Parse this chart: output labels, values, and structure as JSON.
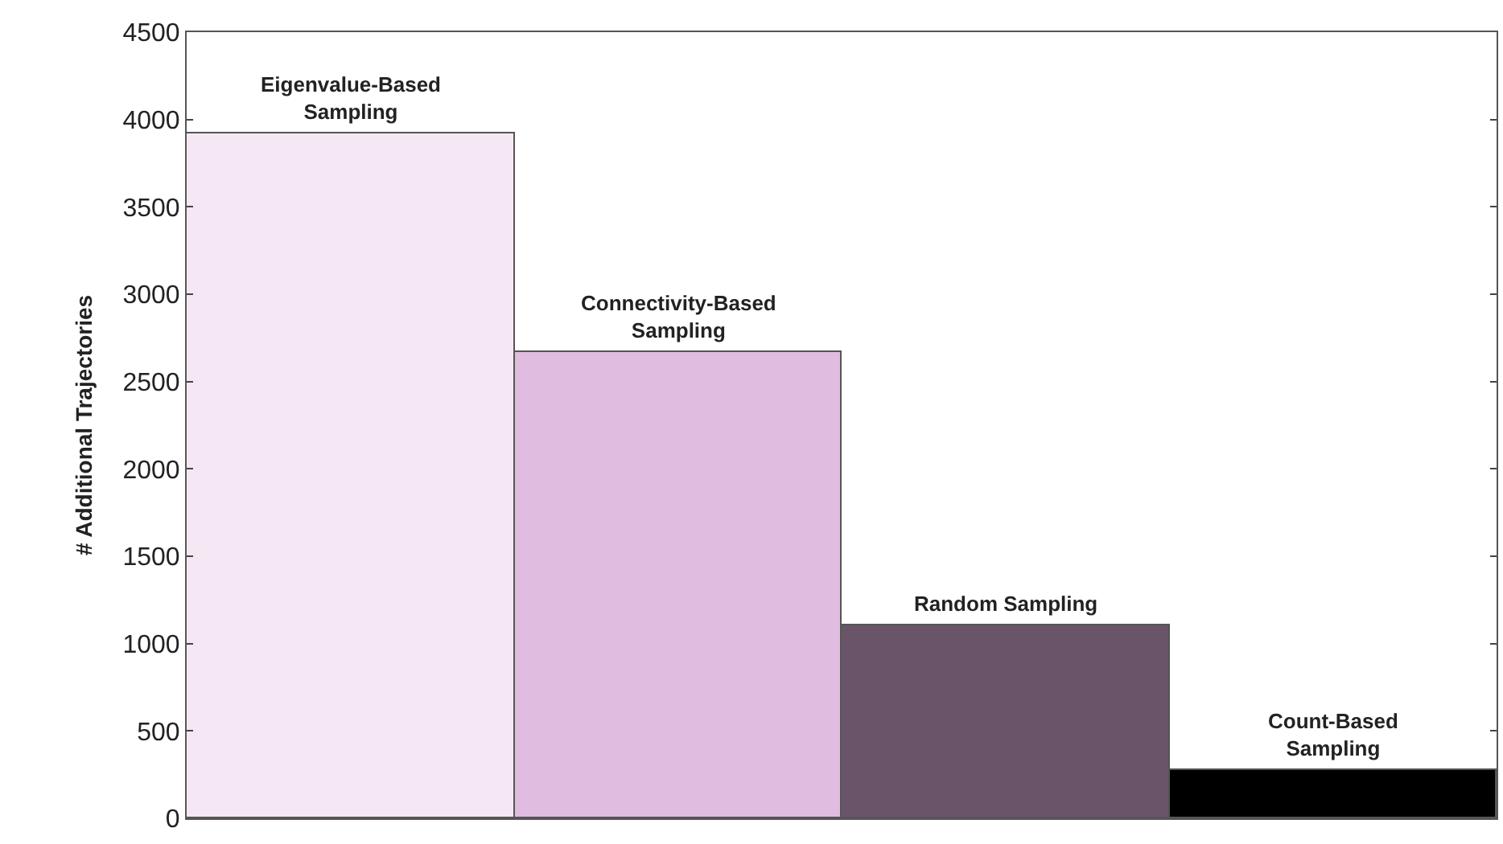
{
  "chart_data": {
    "type": "bar",
    "ylabel": "# Additional Trajectories",
    "categories": [
      "Eigenvalue-Based Sampling",
      "Connectivity-Based Sampling",
      "Random Sampling",
      "Count-Based Sampling"
    ],
    "values": [
      3920,
      2670,
      1100,
      280
    ],
    "colors": [
      "#f5e8f4",
      "#e0bde0",
      "#6a5469",
      "#000000"
    ],
    "ylim": [
      0,
      4500
    ],
    "yticks": [
      0,
      500,
      1000,
      1500,
      2000,
      2500,
      3000,
      3500,
      4000,
      4500
    ],
    "tick_labels": "y"
  }
}
